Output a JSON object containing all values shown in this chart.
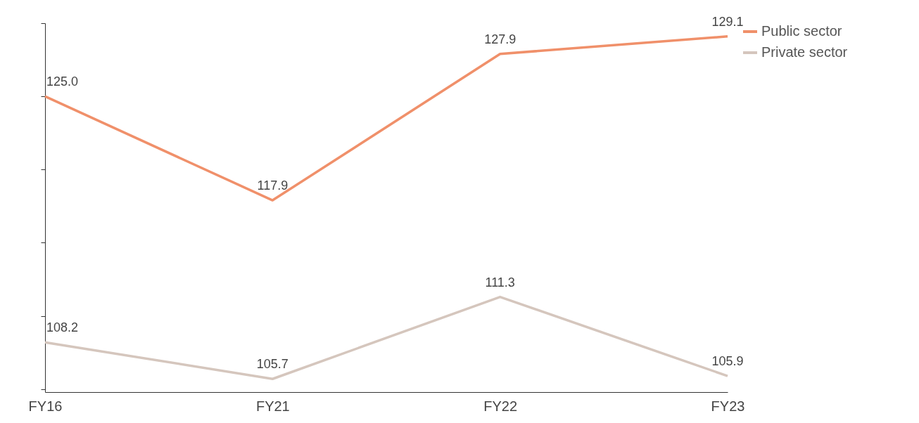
{
  "chart_data": {
    "type": "line",
    "categories": [
      "FY16",
      "FY21",
      "FY22",
      "FY23"
    ],
    "series": [
      {
        "name": "Public sector",
        "color": "#f0906a",
        "values": [
          125.0,
          117.9,
          127.9,
          129.1
        ],
        "value_labels": [
          "125.0",
          "117.9",
          "127.9",
          "129.1"
        ]
      },
      {
        "name": "Private sector",
        "color": "#d5c6bd",
        "values": [
          108.2,
          105.7,
          111.3,
          105.9
        ],
        "value_labels": [
          "108.2",
          "105.7",
          "111.3",
          "105.9"
        ]
      }
    ],
    "ylim": [
      104.8,
      130
    ],
    "yticks": [
      {
        "value": 105,
        "label": null
      },
      {
        "value": 110,
        "label": null
      },
      {
        "value": 115,
        "label": null
      },
      {
        "value": 120,
        "label": null
      },
      {
        "value": 125,
        "label": null
      },
      {
        "value": 130,
        "label": null
      }
    ],
    "tick_labels": "x",
    "data_labels": true,
    "grid": false,
    "legend": "top right",
    "marker": "none",
    "line_style": "solid"
  }
}
